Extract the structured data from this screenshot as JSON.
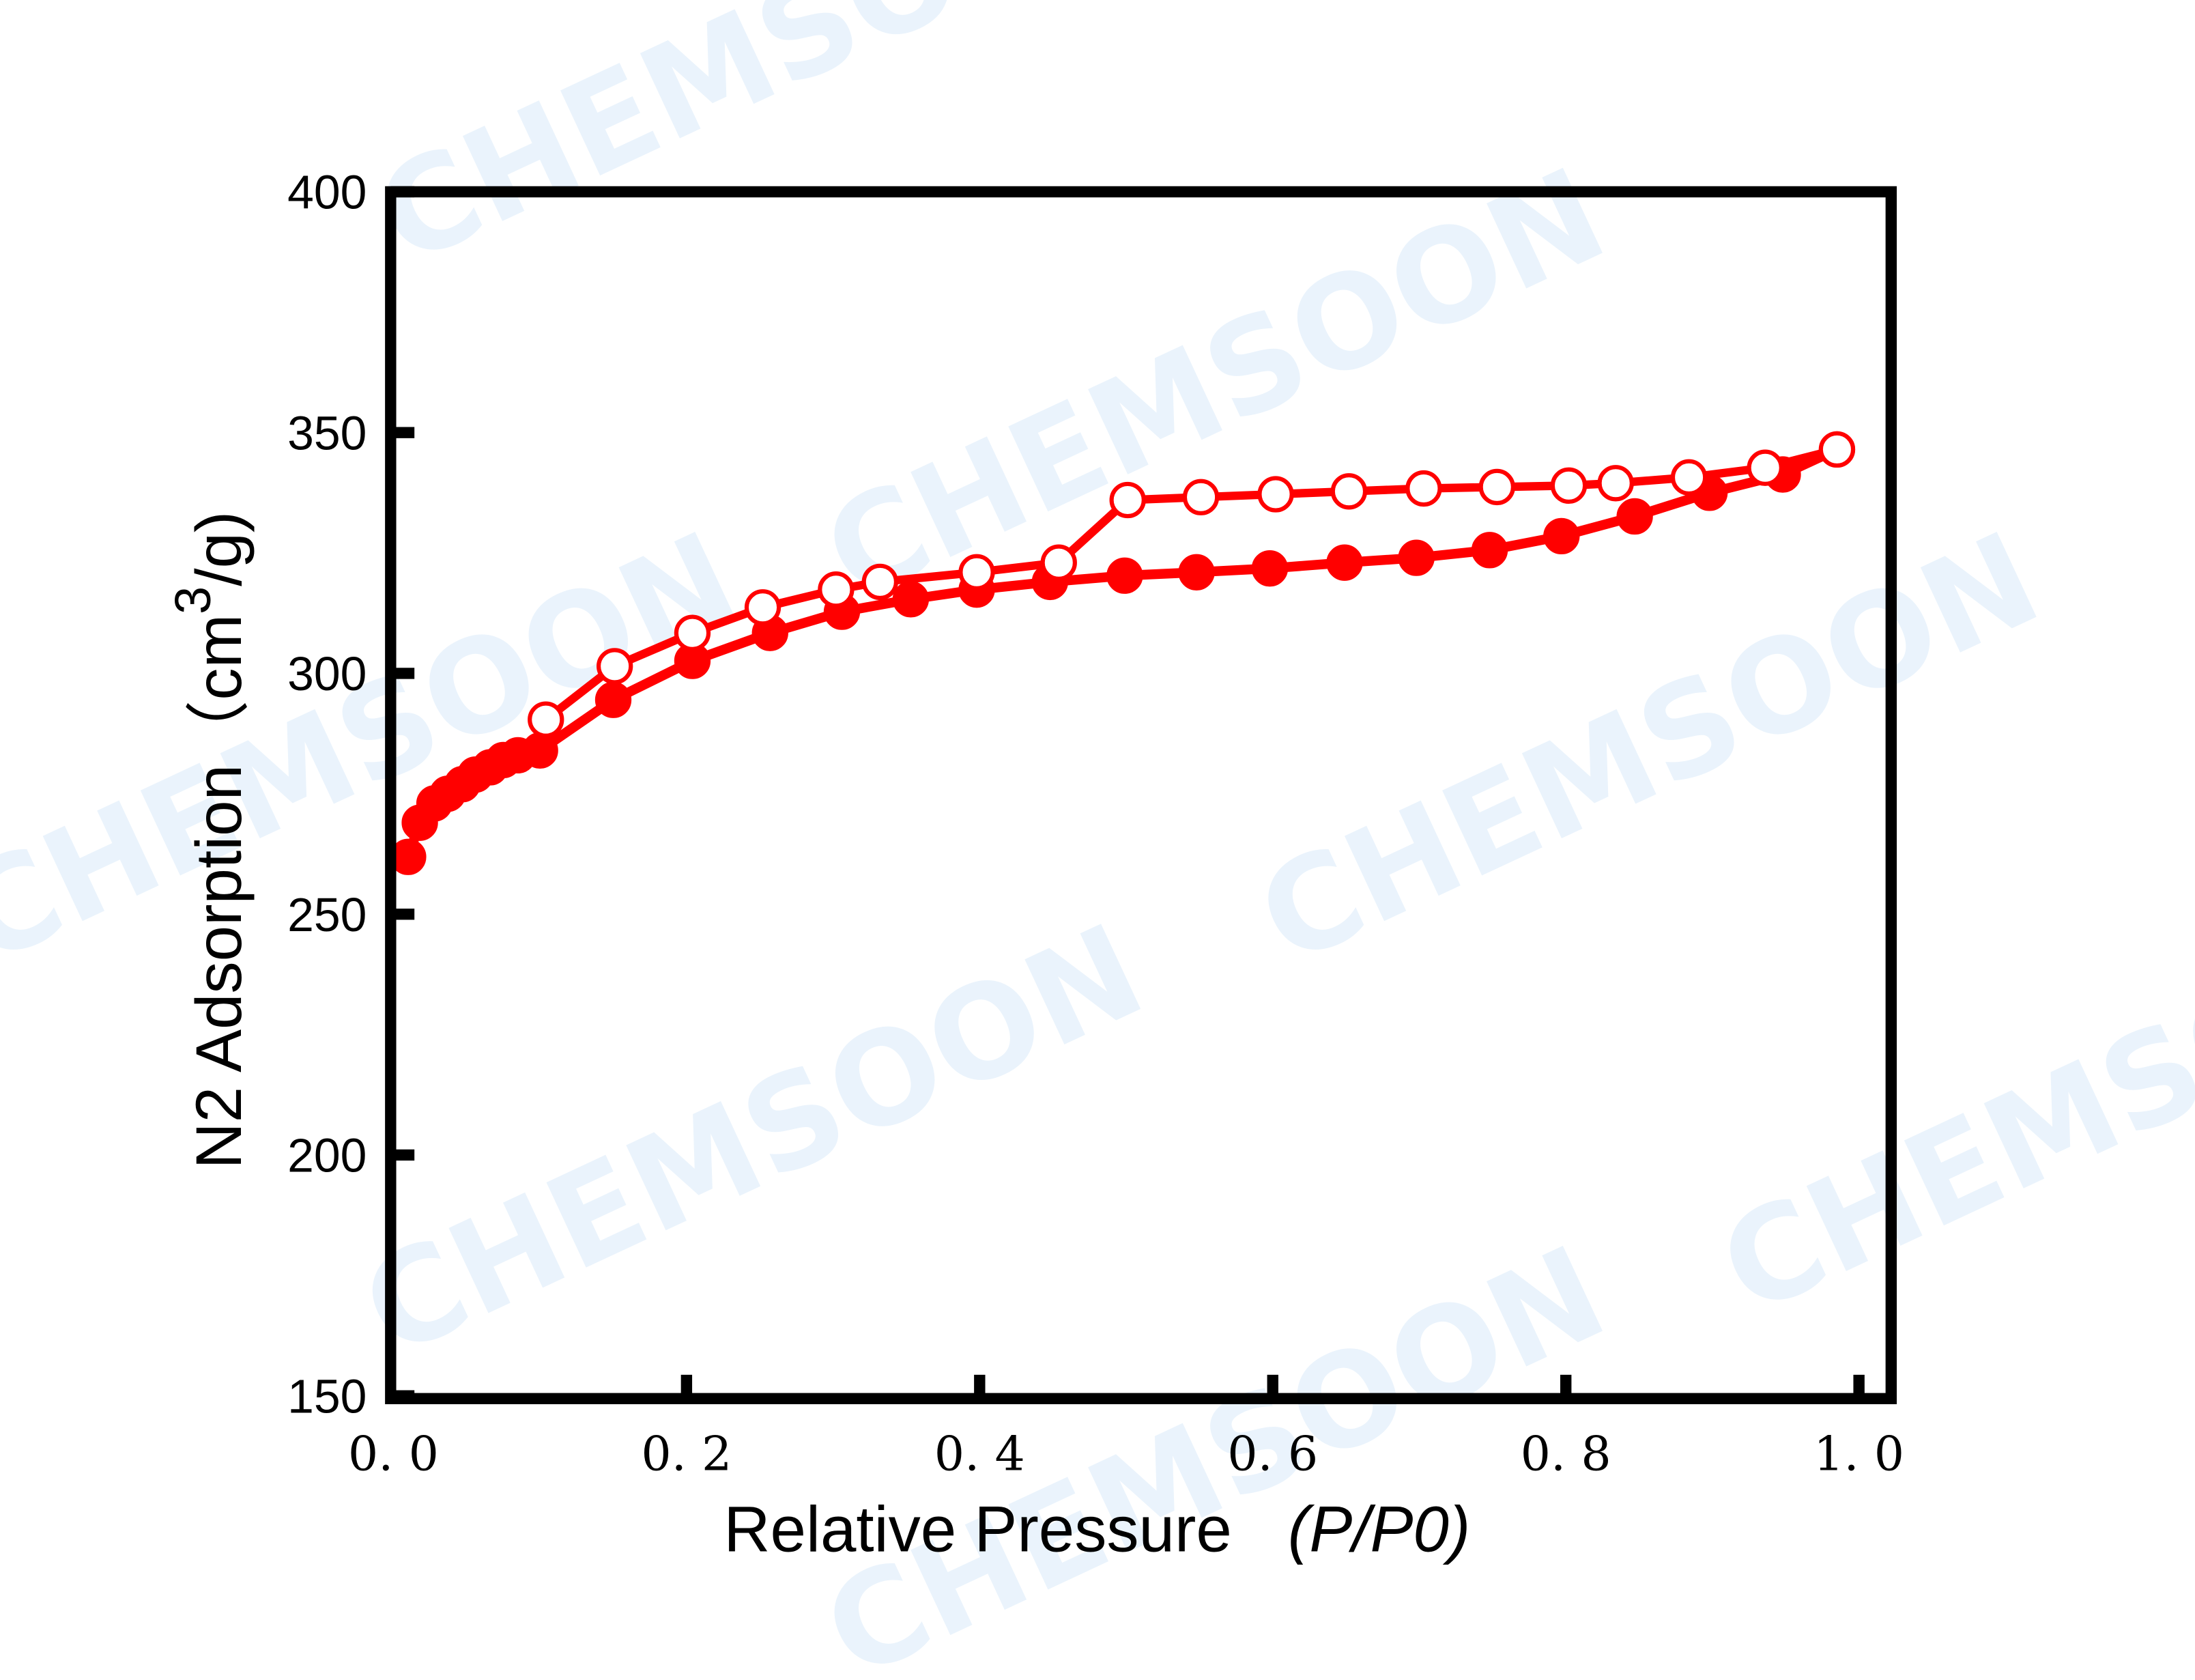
{
  "chart_data": {
    "type": "line",
    "xlabel": "Relative Pressure",
    "xlabel_italic": "(P/P0)",
    "ylabel": "N2 Adsorption",
    "ylabel_unit_prefix": "（cm",
    "ylabel_unit_sup": "3",
    "ylabel_unit_suffix": "/g)",
    "xlim": [
      0.0,
      1.0
    ],
    "ylim": [
      150,
      400
    ],
    "xticks": [
      0.0,
      0.2,
      0.4,
      0.6,
      0.8,
      1.0
    ],
    "xtick_labels": [
      "0. 0",
      "0. 2",
      "0. 4",
      "0. 6",
      "0. 8",
      "1. 0"
    ],
    "yticks": [
      150,
      200,
      250,
      300,
      350,
      400
    ],
    "ytick_labels": [
      "150",
      "200",
      "250",
      "300",
      "350",
      "400"
    ],
    "grid": false,
    "color": "#ff0000",
    "series": [
      {
        "marker": "filled-circle",
        "x": [
          0.01,
          0.018,
          0.028,
          0.037,
          0.047,
          0.056,
          0.066,
          0.075,
          0.085,
          0.1,
          0.15,
          0.204,
          0.257,
          0.306,
          0.353,
          0.398,
          0.448,
          0.499,
          0.548,
          0.598,
          0.649,
          0.698,
          0.748,
          0.797,
          0.847,
          0.898,
          0.948,
          0.985
        ],
        "y": [
          261.9,
          269,
          273,
          275,
          277,
          279,
          280.5,
          282,
          283,
          284,
          294.5,
          302.6,
          308.4,
          312.8,
          315.4,
          317.4,
          319,
          320.3,
          321,
          321.8,
          323,
          324,
          325.6,
          328.5,
          332.6,
          337.5,
          341.3,
          346.5
        ]
      },
      {
        "marker": "open-circle",
        "x": [
          0.985,
          0.936,
          0.884,
          0.834,
          0.802,
          0.753,
          0.703,
          0.652,
          0.602,
          0.551,
          0.501,
          0.454,
          0.398,
          0.332,
          0.302,
          0.252,
          0.204,
          0.151,
          0.104
        ],
        "y": [
          346.5,
          342.7,
          340.7,
          339.5,
          339,
          338.7,
          338.4,
          337.8,
          337.2,
          336.6,
          336,
          323,
          321,
          319,
          317.4,
          313.7,
          308.4,
          301.5,
          290.4
        ]
      }
    ]
  },
  "watermark": "CHEMSOON"
}
